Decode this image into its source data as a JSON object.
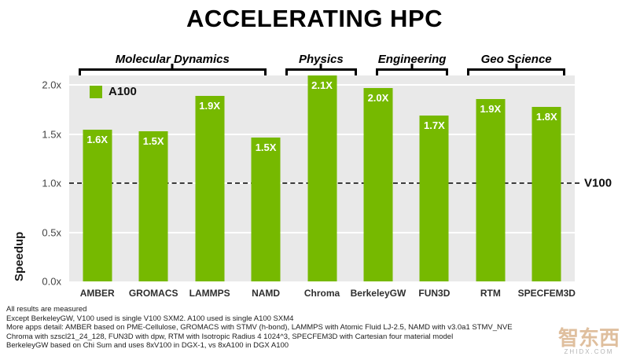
{
  "title": "ACCELERATING HPC",
  "legend": {
    "label": "A100",
    "color": "#76b900"
  },
  "y_axis_label": "Speedup",
  "chart_data": {
    "type": "bar",
    "title": "ACCELERATING HPC",
    "series_name": "A100",
    "bar_color": "#76b900",
    "xlabel": "",
    "ylabel": "Speedup",
    "grid": true,
    "legend_position": "top-left",
    "ylim": [
      0,
      2.1
    ],
    "ytick_values": [
      0,
      0.5,
      1.0,
      1.5,
      2.0
    ],
    "ytick_labels": [
      "0.0x",
      "0.5x",
      "1.0x",
      "1.5x",
      "2.0x"
    ],
    "reference_line": {
      "value": 1.0,
      "label": "V100"
    },
    "categories": [
      "AMBER",
      "GROMACS",
      "LAMMPS",
      "NAMD",
      "Chroma",
      "BerkeleyGW",
      "FUN3D",
      "RTM",
      "SPECFEM3D"
    ],
    "values": [
      1.6,
      1.5,
      1.9,
      1.5,
      2.1,
      2.0,
      1.7,
      1.9,
      1.8
    ],
    "groups": [
      {
        "label": "Molecular Dynamics",
        "bars": [
          {
            "category": "AMBER",
            "value": 1.55,
            "label": "1.6X"
          },
          {
            "category": "GROMACS",
            "value": 1.53,
            "label": "1.5X"
          },
          {
            "category": "LAMMPS",
            "value": 1.89,
            "label": "1.9X"
          },
          {
            "category": "NAMD",
            "value": 1.47,
            "label": "1.5X"
          }
        ]
      },
      {
        "label": "Physics",
        "bars": [
          {
            "category": "Chroma",
            "value": 2.1,
            "label": "2.1X"
          },
          {
            "category": "BerkeleyGW",
            "value": 1.97,
            "label": "2.0X"
          }
        ]
      },
      {
        "label": "Engineering",
        "bars": [
          {
            "category": "FUN3D",
            "value": 1.69,
            "label": "1.7X"
          }
        ]
      },
      {
        "label": "Geo Science",
        "bars": [
          {
            "category": "RTM",
            "value": 1.86,
            "label": "1.9X"
          },
          {
            "category": "SPECFEM3D",
            "value": 1.78,
            "label": "1.8X"
          }
        ]
      }
    ]
  },
  "footnotes": [
    "All results are measured",
    "Except BerkeleyGW, V100 used is single V100 SXM2. A100 used is single A100 SXM4",
    "More apps detail: AMBER based on PME-Cellulose,  GROMACS with STMV (h-bond), LAMMPS with Atomic Fluid LJ-2.5, NAMD with v3.0a1 STMV_NVE",
    "Chroma with szscl21_24_128, FUN3D with dpw, RTM with Isotropic Radius 4 1024^3, SPECFEM3D with Cartesian four material model",
    "BerkeleyGW based on Chi Sum and uses 8xV100 in DGX-1, vs 8xA100 in DGX A100"
  ],
  "watermark": {
    "text": "智东西",
    "subtext": "ZHIDX.COM"
  }
}
